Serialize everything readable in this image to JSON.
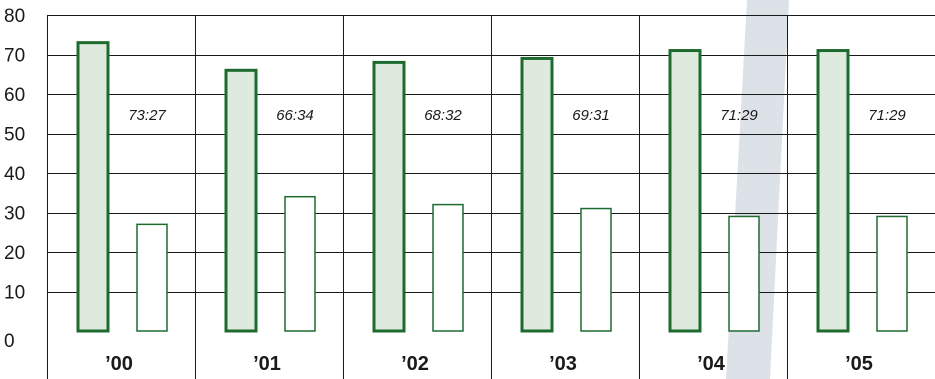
{
  "chart_data": {
    "type": "bar",
    "categories": [
      "’00",
      "’01",
      "’02",
      "’03",
      "’04",
      "’05"
    ],
    "series": [
      {
        "values": [
          73,
          66,
          68,
          69,
          71,
          71
        ]
      },
      {
        "values": [
          27,
          34,
          32,
          31,
          29,
          29
        ]
      }
    ],
    "ratio_labels": [
      "73:27",
      "66:34",
      "68:32",
      "69:31",
      "71:29",
      "71:29"
    ],
    "y_ticks": [
      "0",
      "10",
      "20",
      "30",
      "40",
      "50",
      "60",
      "70",
      "80"
    ],
    "ylim": [
      0,
      80
    ],
    "grid": true,
    "title": "",
    "xlabel": "",
    "ylabel": "",
    "colors": {
      "series_1_fill": "#dfeadf",
      "series_1_stroke": "#1e6b30",
      "series_2_fill": "#ffffff",
      "series_2_stroke": "#1e6b30",
      "grid": "#1a1a1a",
      "decor_band": "#dde2e8"
    }
  }
}
